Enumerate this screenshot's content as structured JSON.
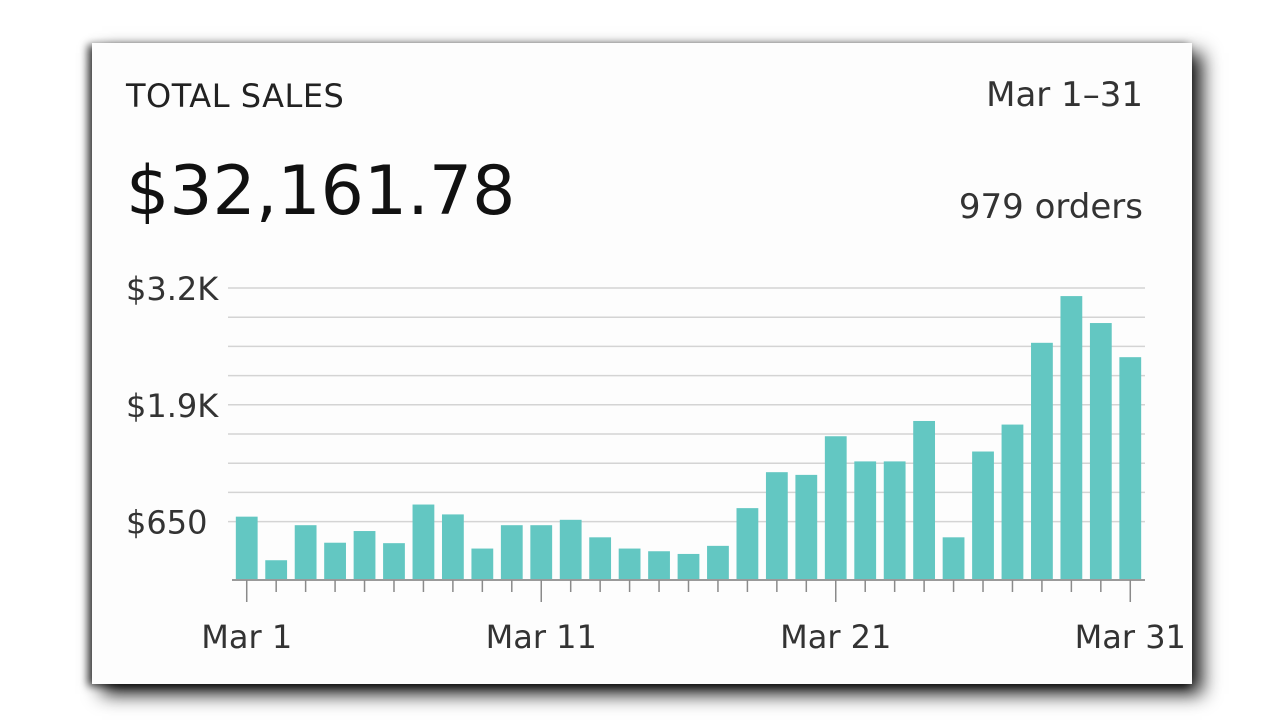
{
  "header": {
    "title": "TOTAL SALES",
    "range": "Mar 1–31",
    "total": "$32,161.78",
    "orders": "979 orders"
  },
  "colors": {
    "bar": "#63c7c2",
    "grid": "#d4d4d4",
    "text": "#333333"
  },
  "chart_data": {
    "type": "bar",
    "categories": [
      "Mar 1",
      "Mar 2",
      "Mar 3",
      "Mar 4",
      "Mar 5",
      "Mar 6",
      "Mar 7",
      "Mar 8",
      "Mar 9",
      "Mar 10",
      "Mar 11",
      "Mar 12",
      "Mar 13",
      "Mar 14",
      "Mar 15",
      "Mar 16",
      "Mar 17",
      "Mar 18",
      "Mar 19",
      "Mar 20",
      "Mar 21",
      "Mar 22",
      "Mar 23",
      "Mar 24",
      "Mar 25",
      "Mar 26",
      "Mar 27",
      "Mar 28",
      "Mar 29",
      "Mar 30",
      "Mar 31"
    ],
    "values": [
      705,
      220,
      610,
      415,
      545,
      410,
      840,
      730,
      350,
      610,
      610,
      670,
      475,
      350,
      320,
      290,
      380,
      800,
      1200,
      1170,
      1600,
      1320,
      1320,
      1770,
      475,
      1430,
      1730,
      2640,
      3160,
      2860,
      2480
    ],
    "y_ticks": [
      "$650",
      "$1.9K",
      "$3.2K"
    ],
    "y_tick_values": [
      650,
      1950,
      3250
    ],
    "x_tick_labels": [
      "Mar 1",
      "Mar 11",
      "Mar 21",
      "Mar 31"
    ],
    "x_tick_indices": [
      0,
      10,
      20,
      30
    ],
    "ylim": [
      0,
      3250
    ],
    "grid": true
  }
}
